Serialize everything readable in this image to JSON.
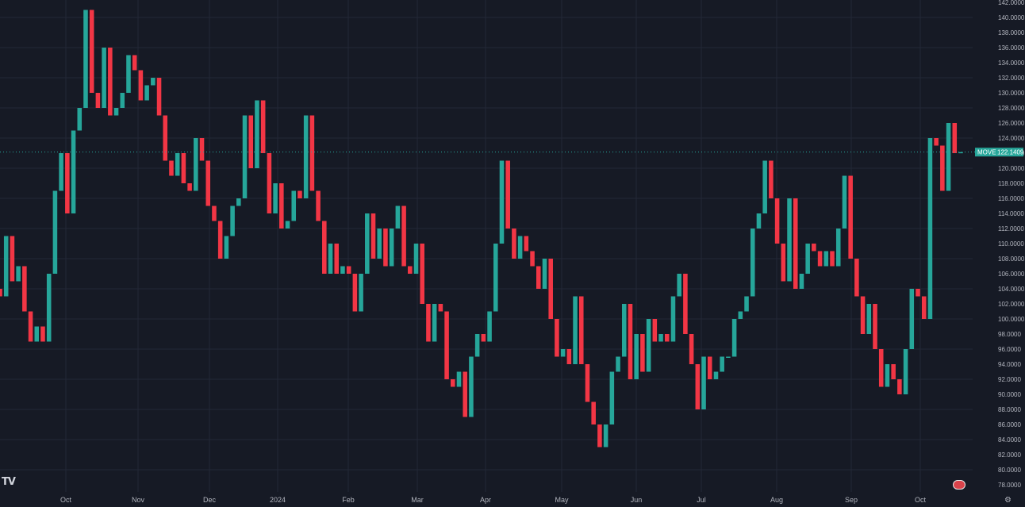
{
  "chart_data": {
    "type": "candlestick",
    "symbol": "MOVE",
    "last_value": "122.1409",
    "y_axis": {
      "min": 78,
      "max": 142,
      "tick_step": 2,
      "decimals": 4
    },
    "x_axis_labels": [
      "p",
      "Oct",
      "Nov",
      "Dec",
      "2024",
      "Feb",
      "Mar",
      "Apr",
      "May",
      "Jun",
      "Jul",
      "Aug",
      "Sep",
      "Oct"
    ],
    "colors": {
      "up": "#26a69a",
      "down": "#f23645",
      "background": "#161a25",
      "grid": "#232836",
      "last_line": "#26a69a"
    },
    "grid": true,
    "closes": [
      103,
      111,
      105,
      107,
      101,
      97,
      99,
      97,
      106,
      117,
      122,
      114,
      125,
      128,
      141,
      130,
      128,
      136,
      127,
      128,
      130,
      135,
      133,
      129,
      131,
      132,
      127,
      121,
      119,
      122,
      118,
      117,
      124,
      121,
      115,
      113,
      108,
      111,
      115,
      116,
      127,
      120,
      129,
      122,
      114,
      118,
      112,
      113,
      117,
      116,
      127,
      117,
      113,
      106,
      110,
      106,
      107,
      106,
      101,
      106,
      114,
      108,
      112,
      107,
      112,
      115,
      107,
      106,
      110,
      102,
      97,
      102,
      101,
      92,
      91,
      93,
      87,
      95,
      98,
      97,
      101,
      110,
      121,
      112,
      108,
      111,
      109,
      107,
      104,
      108,
      100,
      95,
      96,
      94,
      103,
      94,
      89,
      86,
      83,
      86,
      93,
      95,
      102,
      92,
      98,
      93,
      100,
      97,
      98,
      97,
      103,
      106,
      98,
      94,
      88,
      95,
      92,
      93,
      95,
      95,
      100,
      101,
      103,
      112,
      114,
      121,
      116,
      110,
      105,
      116,
      104,
      106,
      110,
      109,
      107,
      109,
      107,
      112,
      119,
      108,
      103,
      98,
      102,
      96,
      91,
      94,
      92,
      90,
      96,
      104,
      103,
      100,
      124,
      123,
      117,
      126,
      122,
      122.1409
    ]
  }
}
